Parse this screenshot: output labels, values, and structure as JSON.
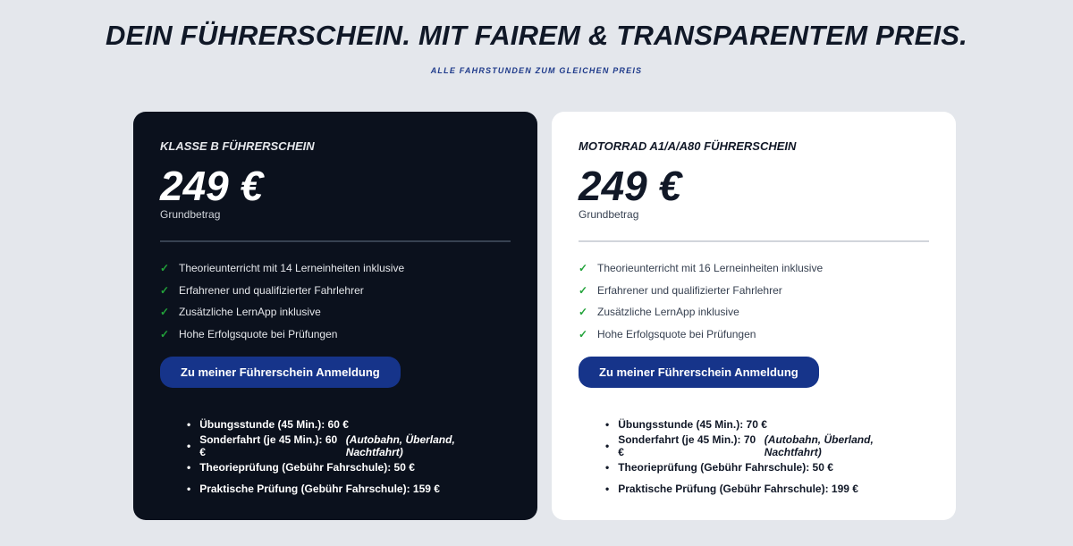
{
  "header": {
    "title": "DEIN FÜHRERSCHEIN. MIT FAIREM & TRANSPARENTEM PREIS.",
    "subtitle": "ALLE FAHRSTUNDEN ZUM GLEICHEN PREIS"
  },
  "colors": {
    "dark_card": "#0b111d",
    "button": "#16348a",
    "check": "#22a33a",
    "background": "#e4e7ec"
  },
  "cards": [
    {
      "title": "KLASSE B FÜHRERSCHEIN",
      "price": "249 €",
      "price_label": "Grundbetrag",
      "features": [
        "Theorieunterricht mit 14 Lerneinheiten inklusive",
        "Erfahrener und qualifizierter Fahrlehrer",
        "Zusätzliche LernApp inklusive",
        "Hohe Erfolgsquote bei Prüfungen"
      ],
      "button": "Zu meiner Führerschein Anmeldung",
      "fees": [
        {
          "text": "Übungsstunde (45 Min.): 60 €",
          "note": ""
        },
        {
          "text": "Sonderfahrt (je 45 Min.): 60 €",
          "note": "(Autobahn, Überland, Nachtfahrt)"
        },
        {
          "text": "Theorieprüfung (Gebühr Fahrschule): 50 €",
          "note": ""
        },
        {
          "text": "Praktische Prüfung (Gebühr Fahrschule): 159 €",
          "note": ""
        }
      ]
    },
    {
      "title": "MOTORRAD A1/A/A80 FÜHRERSCHEIN",
      "price": "249 €",
      "price_label": "Grundbetrag",
      "features": [
        "Theorieunterricht mit 16 Lerneinheiten inklusive",
        "Erfahrener und qualifizierter Fahrlehrer",
        "Zusätzliche LernApp inklusive",
        "Hohe Erfolgsquote bei Prüfungen"
      ],
      "button": "Zu meiner Führerschein Anmeldung",
      "fees": [
        {
          "text": "Übungsstunde (45 Min.): 70 €",
          "note": ""
        },
        {
          "text": "Sonderfahrt (je 45 Min.): 70 €",
          "note": "(Autobahn, Überland, Nachtfahrt)"
        },
        {
          "text": "Theorieprüfung (Gebühr Fahrschule): 50 €",
          "note": ""
        },
        {
          "text": "Praktische Prüfung (Gebühr Fahrschule): 199 €",
          "note": ""
        }
      ]
    }
  ]
}
